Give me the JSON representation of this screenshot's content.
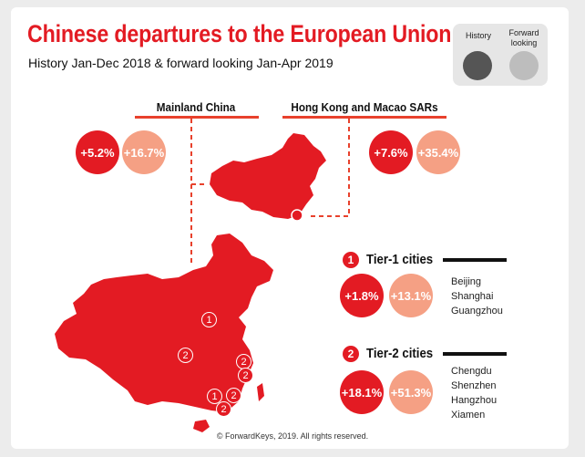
{
  "header": {
    "title": "Chinese departures to the European Union",
    "subtitle": "History Jan-Dec 2018 & forward looking Jan-Apr 2019"
  },
  "legend": {
    "history_label": "History",
    "forward_label": "Forward looking",
    "history_color": "#e31b23",
    "forward_color": "#f5a084"
  },
  "regions": {
    "mainland": {
      "label": "Mainland China",
      "history": "+5.2%",
      "forward": "+16.7%"
    },
    "sar": {
      "label": "Hong Kong and Macao SARs",
      "history": "+7.6%",
      "forward": "+35.4%"
    }
  },
  "tiers": [
    {
      "number": "1",
      "label": "Tier-1 cities",
      "history": "+1.8%",
      "forward": "+13.1%",
      "cities": [
        "Beijing",
        "Shanghai",
        "Guangzhou"
      ]
    },
    {
      "number": "2",
      "label": "Tier-2 cities",
      "history": "+18.1%",
      "forward": "+51.3%",
      "cities": [
        "Chengdu",
        "Shenzhen",
        "Hangzhou",
        "Xiamen"
      ]
    }
  ],
  "map_markers": [
    "1",
    "2",
    "2",
    "2",
    "1",
    "2",
    "2"
  ],
  "footer": "© ForwardKeys, 2019. All rights reserved."
}
